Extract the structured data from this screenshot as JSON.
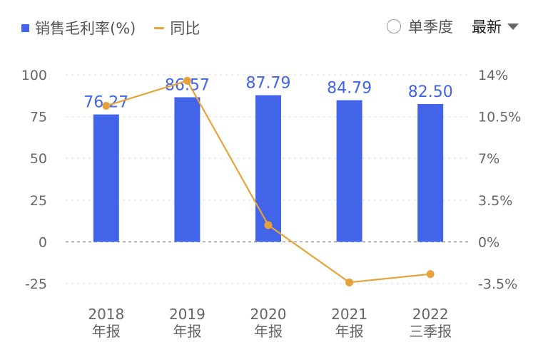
{
  "legend": {
    "bar_label": "销售毛利率(%)",
    "line_label": "同比"
  },
  "controls": {
    "season_label": "单季度",
    "latest_label": "最新"
  },
  "colors": {
    "bar": "#4164e9",
    "line": "#e6a33c",
    "grid": "#dddddd",
    "zero": "#999999"
  },
  "chart_data": {
    "type": "bar",
    "categories": [
      [
        "2018",
        "年报"
      ],
      [
        "2019",
        "年报"
      ],
      [
        "2020",
        "年报"
      ],
      [
        "2021",
        "年报"
      ],
      [
        "2022",
        "三季报"
      ]
    ],
    "series": [
      {
        "name": "销售毛利率(%)",
        "type": "bar",
        "axis": "left",
        "values": [
          76.27,
          86.57,
          87.79,
          84.79,
          82.5
        ],
        "labels": [
          "76.27",
          "86.57",
          "87.79",
          "84.79",
          "82.50"
        ]
      },
      {
        "name": "同比",
        "type": "line",
        "axis": "right",
        "values": [
          11.4,
          13.5,
          1.4,
          -3.4,
          -2.7
        ]
      }
    ],
    "y_left": {
      "ylim": [
        -25,
        100
      ],
      "ticks": [
        100,
        75,
        50,
        25,
        0,
        -25
      ],
      "tick_labels": [
        "100",
        "75",
        "50",
        "25",
        "0",
        "-25"
      ]
    },
    "y_right": {
      "ylim": [
        -3.5,
        14
      ],
      "ticks": [
        14,
        10.5,
        7,
        3.5,
        0,
        -3.5
      ],
      "tick_labels": [
        "14%",
        "10.5%",
        "7%",
        "3.5%",
        "0%",
        "-3.5%"
      ]
    },
    "grid": true
  }
}
